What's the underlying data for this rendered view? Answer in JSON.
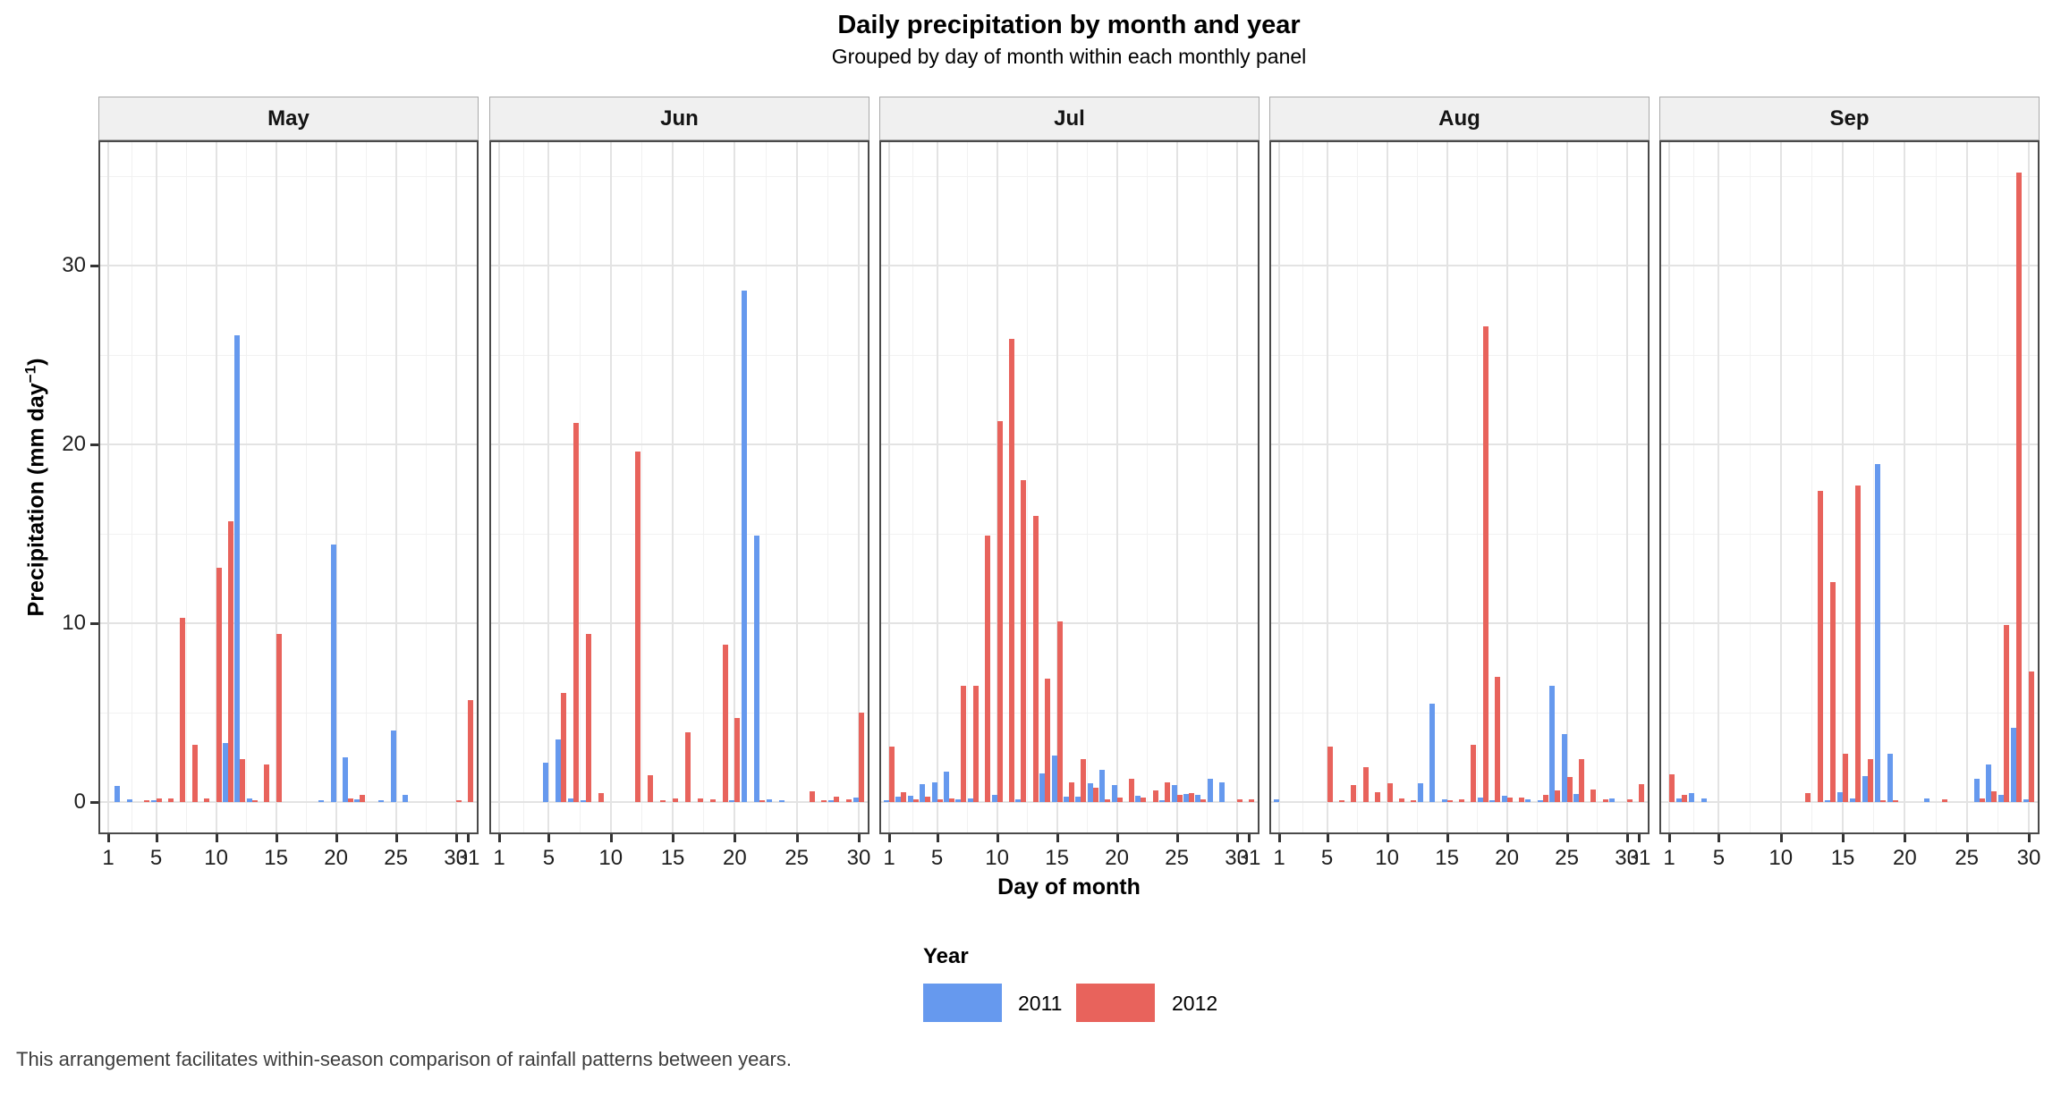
{
  "chart_data": {
    "type": "bar",
    "title": "Daily precipitation by month and year",
    "subtitle": "Grouped by day of month within each monthly panel",
    "xlabel": "Day of month",
    "ylabel_main": "Precipitation (mm day",
    "ylabel_sup": "−1",
    "ylabel_close": ")",
    "caption": "This arrangement facilitates within-season comparison of rainfall patterns between years.",
    "ylim": [
      0,
      37
    ],
    "y_ticks": [
      0,
      10,
      20,
      30
    ],
    "x_major_ticks": [
      1,
      5,
      10,
      15,
      20,
      25,
      30
    ],
    "x_minor_ticks": [
      3,
      7.5,
      12.5,
      17.5,
      22.5,
      27.5
    ],
    "y_minor_ticks": [
      5,
      15,
      25,
      35
    ],
    "grid": "on",
    "legend": {
      "title": "Year",
      "position": "bottom",
      "entries": [
        {
          "label": "2011",
          "color": "#6699EE"
        },
        {
          "label": "2012",
          "color": "#E8635C"
        }
      ]
    },
    "colors": {
      "year_2011": "#6699EE",
      "year_2012": "#E8635C",
      "panel_border": "#4A4A4A",
      "strip_bg": "#F0F0F0",
      "strip_border": "#A9A9A9",
      "grid_major": "#E3E3E3",
      "grid_minor": "#F1F1F1",
      "tick": "#333333",
      "caption_text": "#3d3d3d"
    },
    "panels": [
      {
        "month": "May",
        "days": 31,
        "series": [
          {
            "name": "2011",
            "values": [
              0,
              0.9,
              0.15,
              0,
              0.1,
              0,
              0,
              0,
              0,
              0,
              3.3,
              26.1,
              0.2,
              0,
              0,
              0,
              0,
              0,
              0.1,
              14.4,
              2.5,
              0.15,
              0,
              0.1,
              4.0,
              0.4,
              0,
              0,
              0,
              0,
              0
            ]
          },
          {
            "name": "2012",
            "values": [
              0,
              0,
              0,
              0.1,
              0.2,
              0.2,
              10.3,
              3.2,
              0.2,
              13.1,
              15.7,
              2.4,
              0.1,
              2.1,
              9.4,
              0,
              0,
              0,
              0,
              0,
              0.2,
              0.4,
              0,
              0,
              0,
              0,
              0,
              0,
              0,
              0.1,
              5.7
            ]
          }
        ]
      },
      {
        "month": "Jun",
        "days": 30,
        "series": [
          {
            "name": "2011",
            "values": [
              0,
              0,
              0,
              0,
              2.2,
              3.5,
              0.2,
              0.1,
              0,
              0,
              0,
              0,
              0,
              0,
              0,
              0,
              0,
              0,
              0,
              0.1,
              28.6,
              14.9,
              0.15,
              0.1,
              0,
              0,
              0,
              0.1,
              0,
              0.25
            ]
          },
          {
            "name": "2012",
            "values": [
              0,
              0,
              0,
              0,
              0,
              6.1,
              21.2,
              9.4,
              0.5,
              0,
              0,
              19.6,
              1.5,
              0.1,
              0.2,
              3.9,
              0.2,
              0.15,
              8.8,
              4.7,
              0,
              0.1,
              0,
              0,
              0,
              0.6,
              0.1,
              0.3,
              0.15,
              5.0
            ]
          }
        ]
      },
      {
        "month": "Jul",
        "days": 31,
        "series": [
          {
            "name": "2011",
            "values": [
              0.1,
              0.3,
              0.35,
              1.0,
              1.1,
              1.7,
              0.15,
              0.2,
              0,
              0.4,
              0,
              0.15,
              0,
              1.6,
              2.6,
              0.3,
              0.3,
              1.05,
              1.8,
              0.95,
              0,
              0.35,
              0,
              0.1,
              0.95,
              0.45,
              0.4,
              1.3,
              1.1,
              0,
              0
            ]
          },
          {
            "name": "2012",
            "values": [
              3.1,
              0.55,
              0.15,
              0.3,
              0.15,
              0.2,
              6.5,
              6.5,
              14.9,
              21.3,
              25.9,
              18.0,
              16.0,
              6.9,
              10.1,
              1.1,
              2.4,
              0.8,
              0.15,
              0.25,
              1.3,
              0.25,
              0.65,
              1.1,
              0.4,
              0.5,
              0.15,
              0,
              0,
              0.15,
              0.15
            ]
          }
        ]
      },
      {
        "month": "Aug",
        "days": 31,
        "series": [
          {
            "name": "2011",
            "values": [
              0.15,
              0,
              0,
              0,
              0,
              0,
              0,
              0,
              0,
              0,
              0,
              0,
              1.05,
              5.5,
              0.15,
              0,
              0,
              0.25,
              0.1,
              0.35,
              0,
              0.15,
              0.1,
              6.5,
              3.8,
              0.45,
              0,
              0,
              0.2,
              0,
              0
            ]
          },
          {
            "name": "2012",
            "values": [
              0,
              0,
              0,
              0,
              3.1,
              0.1,
              0.95,
              1.95,
              0.55,
              1.05,
              0.2,
              0.1,
              0,
              0,
              0.1,
              0.15,
              3.2,
              26.6,
              7.0,
              0.25,
              0.25,
              0,
              0.4,
              0.65,
              1.4,
              2.4,
              0.7,
              0.15,
              0,
              0.15,
              1.0
            ]
          }
        ]
      },
      {
        "month": "Sep",
        "days": 30,
        "series": [
          {
            "name": "2011",
            "values": [
              0,
              0.2,
              0.5,
              0.2,
              0,
              0,
              0,
              0,
              0,
              0,
              0,
              0,
              0,
              0.1,
              0.55,
              0.2,
              1.45,
              18.9,
              2.7,
              0,
              0,
              0.2,
              0,
              0,
              0,
              1.3,
              2.1,
              0.4,
              4.15,
              0.15
            ]
          },
          {
            "name": "2012",
            "values": [
              1.55,
              0.4,
              0,
              0,
              0,
              0,
              0,
              0,
              0,
              0,
              0,
              0.5,
              17.4,
              12.3,
              2.7,
              17.7,
              2.4,
              0.1,
              0.1,
              0,
              0,
              0,
              0.15,
              0,
              0,
              0.2,
              0.6,
              9.9,
              35.2,
              7.3
            ]
          }
        ]
      }
    ]
  }
}
